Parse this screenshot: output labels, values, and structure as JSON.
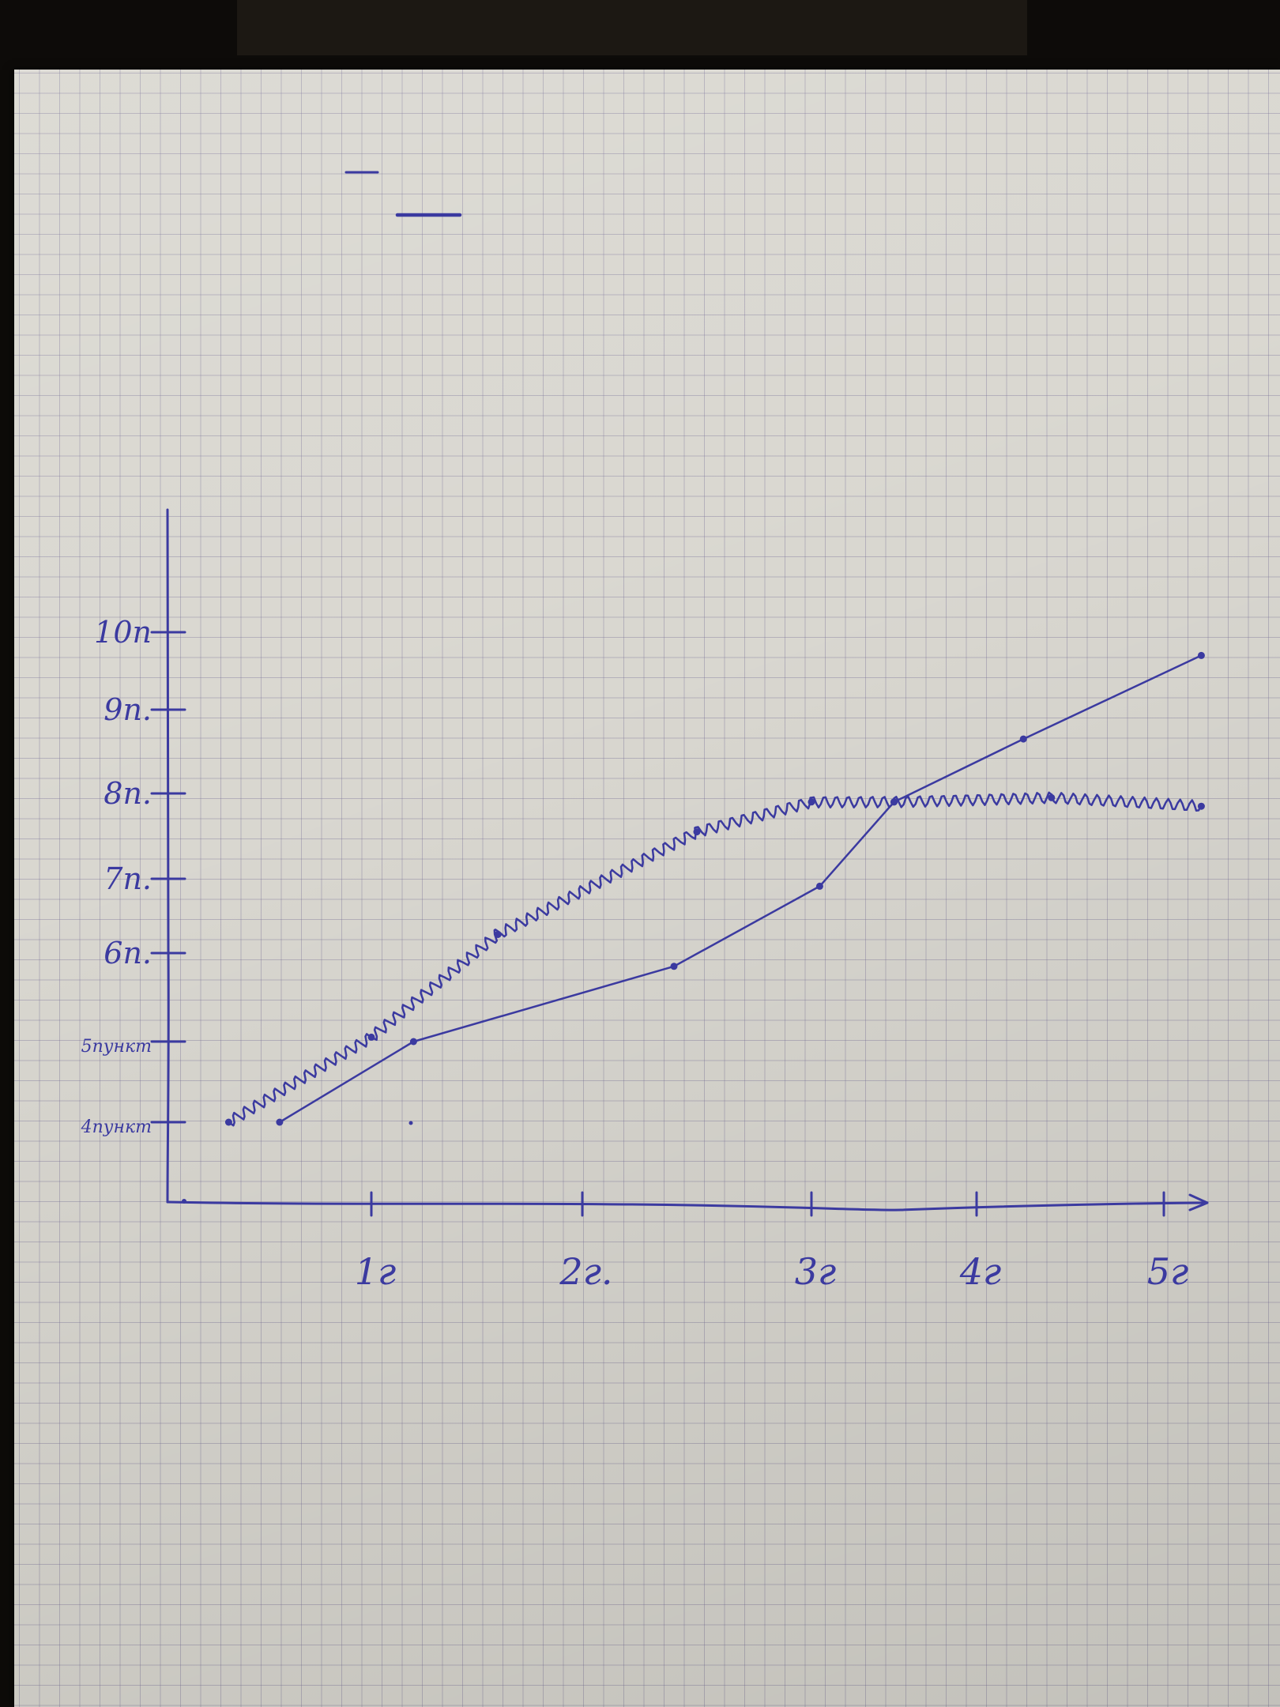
{
  "chart_data": {
    "type": "line",
    "title": "",
    "xlabel": "",
    "ylabel": "",
    "x_ticks": [
      {
        "value": 1,
        "label": "1г"
      },
      {
        "value": 2,
        "label": "2г."
      },
      {
        "value": 3,
        "label": "3г"
      },
      {
        "value": 4,
        "label": "4г"
      },
      {
        "value": 5,
        "label": "5г"
      }
    ],
    "y_ticks": [
      {
        "value": 4,
        "label": "4пункт"
      },
      {
        "value": 5,
        "label": "5пункт"
      },
      {
        "value": 6,
        "label": "6п."
      },
      {
        "value": 7,
        "label": "7п."
      },
      {
        "value": 8,
        "label": "8п."
      },
      {
        "value": 9,
        "label": "9п."
      },
      {
        "value": 10,
        "label": "10п"
      }
    ],
    "xlim": [
      0,
      5.2
    ],
    "ylim": [
      3,
      11
    ],
    "series": [
      {
        "style": "solid",
        "points": [
          {
            "x": 0.55,
            "y": 4.0
          },
          {
            "x": 1.2,
            "y": 5.0
          },
          {
            "x": 2.4,
            "y": 5.85
          },
          {
            "x": 3.05,
            "y": 6.9
          },
          {
            "x": 3.5,
            "y": 7.9
          },
          {
            "x": 4.25,
            "y": 8.65
          },
          {
            "x": 5.2,
            "y": 9.7
          }
        ]
      },
      {
        "style": "wavy",
        "points": [
          {
            "x": 0.3,
            "y": 4.0
          },
          {
            "x": 1.0,
            "y": 5.05
          },
          {
            "x": 1.6,
            "y": 6.25
          },
          {
            "x": 2.5,
            "y": 7.55
          },
          {
            "x": 3.0,
            "y": 7.9
          },
          {
            "x": 3.5,
            "y": 7.9
          },
          {
            "x": 4.4,
            "y": 7.95
          },
          {
            "x": 5.2,
            "y": 7.85
          }
        ]
      }
    ],
    "grid": true,
    "legend": "none"
  },
  "colors": {
    "ink": "#3b3aa0",
    "paper": "#d9d7d0",
    "grid": "#8f89a8"
  }
}
